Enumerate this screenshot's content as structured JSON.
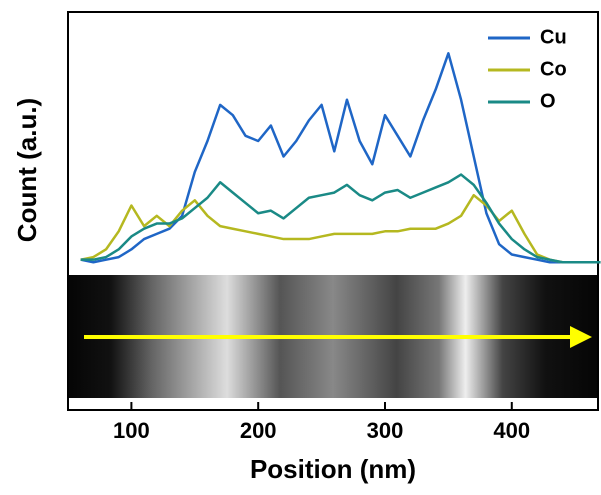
{
  "chart_data": {
    "type": "line",
    "xlabel": "Position (nm)",
    "ylabel": "Count (a.u.)",
    "x": [
      60,
      70,
      80,
      90,
      100,
      110,
      120,
      130,
      140,
      150,
      160,
      170,
      180,
      190,
      200,
      210,
      220,
      230,
      240,
      250,
      260,
      270,
      280,
      290,
      300,
      310,
      320,
      330,
      340,
      350,
      360,
      370,
      380,
      390,
      400,
      410,
      420,
      430,
      440,
      450,
      460,
      470
    ],
    "series": [
      {
        "name": "Cu",
        "color": "#1f66c6",
        "values": [
          4,
          3,
          4,
          5,
          8,
          12,
          14,
          16,
          21,
          38,
          50,
          64,
          60,
          52,
          50,
          56,
          44,
          50,
          58,
          64,
          46,
          66,
          50,
          41,
          60,
          52,
          44,
          58,
          70,
          84,
          66,
          44,
          22,
          10,
          6,
          5,
          4,
          3,
          3,
          3,
          3,
          3
        ]
      },
      {
        "name": "Co",
        "color": "#b5b820",
        "values": [
          4,
          5,
          8,
          15,
          25,
          17,
          21,
          17,
          23,
          27,
          21,
          17,
          16,
          15,
          14,
          13,
          12,
          12,
          12,
          13,
          14,
          14,
          14,
          14,
          15,
          15,
          16,
          16,
          16,
          18,
          21,
          29,
          25,
          19,
          23,
          14,
          6,
          4,
          3,
          3,
          3,
          3
        ]
      },
      {
        "name": "O",
        "color": "#1a8a86",
        "values": [
          4,
          4,
          5,
          8,
          13,
          16,
          18,
          18,
          20,
          24,
          28,
          34,
          30,
          26,
          22,
          23,
          20,
          24,
          28,
          29,
          30,
          33,
          29,
          27,
          30,
          31,
          28,
          30,
          32,
          34,
          37,
          33,
          26,
          18,
          12,
          8,
          5,
          4,
          3,
          3,
          3,
          3
        ]
      }
    ],
    "xlim": [
      50,
      468
    ],
    "xticks": [
      100,
      200,
      300,
      400
    ],
    "ylim": [
      0,
      100
    ],
    "legend": "upper right"
  }
}
